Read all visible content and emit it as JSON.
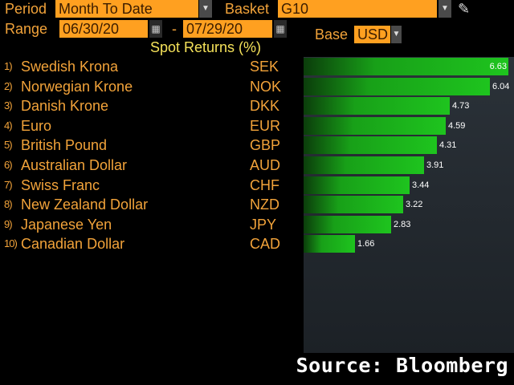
{
  "controls": {
    "period_label": "Period",
    "period_value": "Month To Date",
    "basket_label": "Basket",
    "basket_value": "G10",
    "range_label": "Range",
    "start_date": "06/30/20",
    "range_sep": "-",
    "end_date": "07/29/20",
    "base_label": "Base",
    "base_value": "USD"
  },
  "icons": {
    "dropdown": "dropdown-arrow-icon",
    "calendar": "calendar-icon",
    "pencil": "pencil-icon"
  },
  "heading": "Spot Returns (%)",
  "rows": [
    {
      "rank": "1)",
      "name": "Swedish Krona",
      "code": "SEK",
      "value": 6.63
    },
    {
      "rank": "2)",
      "name": "Norwegian Krone",
      "code": "NOK",
      "value": 6.04
    },
    {
      "rank": "3)",
      "name": "Danish Krone",
      "code": "DKK",
      "value": 4.73
    },
    {
      "rank": "4)",
      "name": "Euro",
      "code": "EUR",
      "value": 4.59
    },
    {
      "rank": "5)",
      "name": "British Pound",
      "code": "GBP",
      "value": 4.31
    },
    {
      "rank": "6)",
      "name": "Australian Dollar",
      "code": "AUD",
      "value": 3.91
    },
    {
      "rank": "7)",
      "name": "Swiss Franc",
      "code": "CHF",
      "value": 3.44
    },
    {
      "rank": "8)",
      "name": "New Zealand Dollar",
      "code": "NZD",
      "value": 3.22
    },
    {
      "rank": "9)",
      "name": "Japanese Yen",
      "code": "JPY",
      "value": 2.83
    },
    {
      "rank": "10)",
      "name": "Canadian Dollar",
      "code": "CAD",
      "value": 1.66
    }
  ],
  "source": "Source: Bloomberg",
  "colors": {
    "label": "#f2a33a",
    "field": "#ffa020",
    "bar": "#1ec41e",
    "heading": "#f5e25a"
  }
}
